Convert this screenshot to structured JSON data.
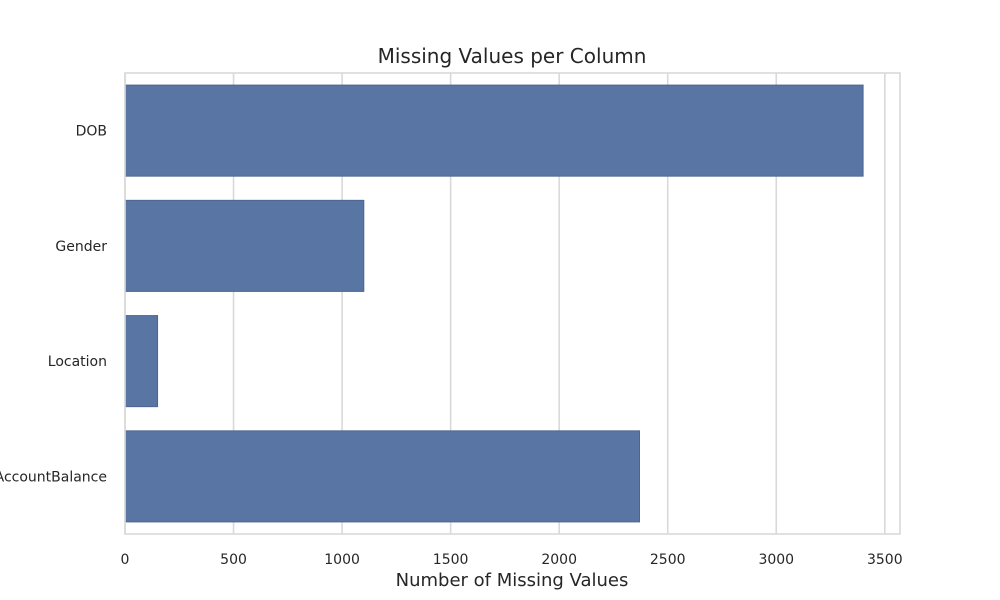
{
  "chart_data": {
    "type": "bar",
    "orientation": "horizontal",
    "title": "Missing Values per Column",
    "xlabel": "Number of Missing Values",
    "ylabel": "",
    "categories": [
      "DOB",
      "Gender",
      "Location",
      "AccountBalance"
    ],
    "values": [
      3400,
      1100,
      150,
      2370
    ],
    "xlim": [
      0,
      3570
    ],
    "x_ticks": [
      0,
      500,
      1000,
      1500,
      2000,
      2500,
      3000,
      3500
    ],
    "grid": true,
    "colors": {
      "bar": "#5975a4",
      "bar_edge": "#4b6590",
      "grid": "#d9d9d9",
      "text": "#262626"
    }
  }
}
